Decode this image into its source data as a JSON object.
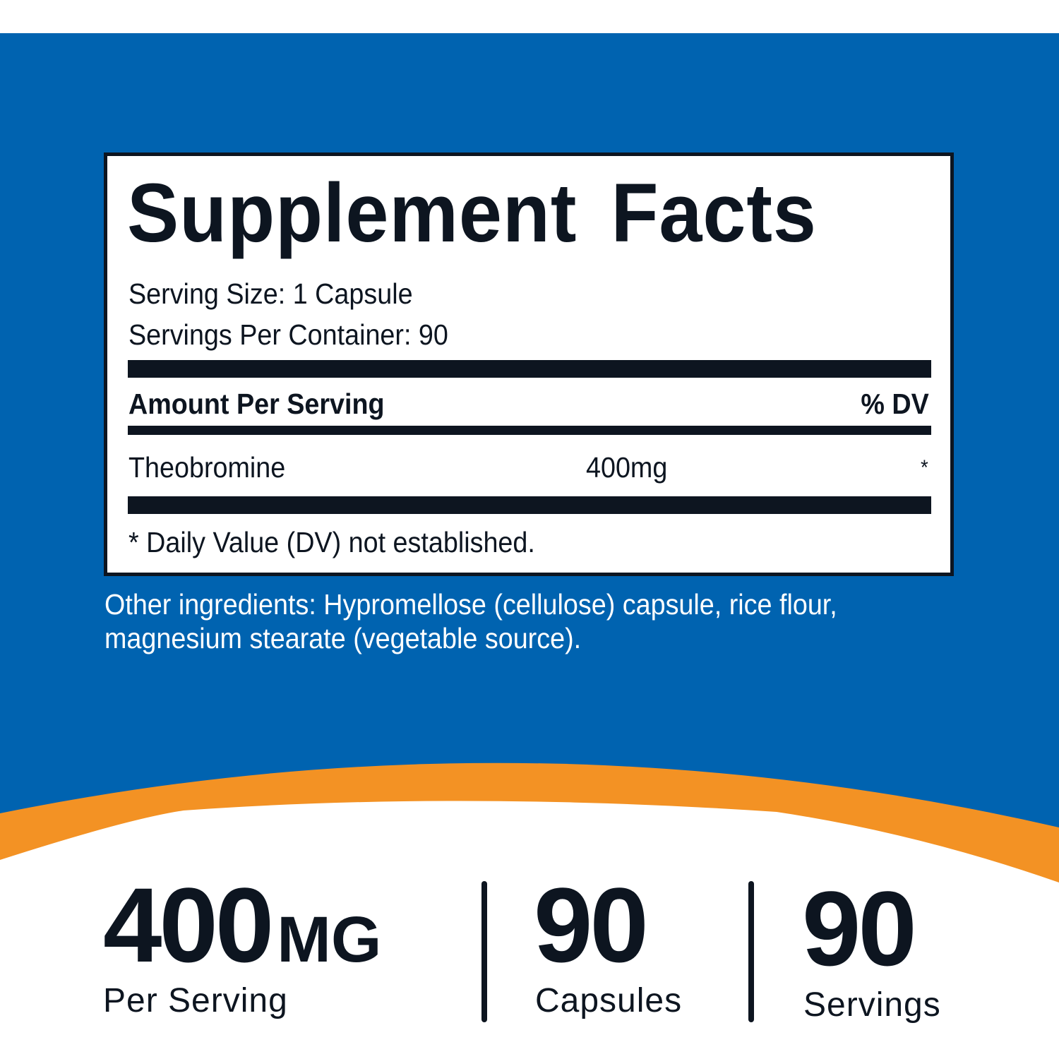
{
  "colors": {
    "background_blue": "#0063B0",
    "accent_orange": "#F39224",
    "text_dark": "#0D1520"
  },
  "facts": {
    "title": "Supplement Facts",
    "serving_size": "Serving Size: 1 Capsule",
    "servings_per_container": "Servings Per Container: 90",
    "amount_header": "Amount Per Serving",
    "dv_header": "% DV",
    "rows": [
      {
        "name": "Theobromine",
        "amount": "400mg",
        "dv": "*"
      }
    ],
    "footnote": "* Daily Value (DV) not established."
  },
  "other_ingredients": "Other ingredients: Hypromellose (cellulose) capsule, rice flour, magnesium stearate (vegetable source).",
  "stats": [
    {
      "value": "400",
      "unit": "MG",
      "label": "Per Serving"
    },
    {
      "value": "90",
      "label": "Capsules"
    },
    {
      "value": "90",
      "label": "Servings"
    }
  ]
}
